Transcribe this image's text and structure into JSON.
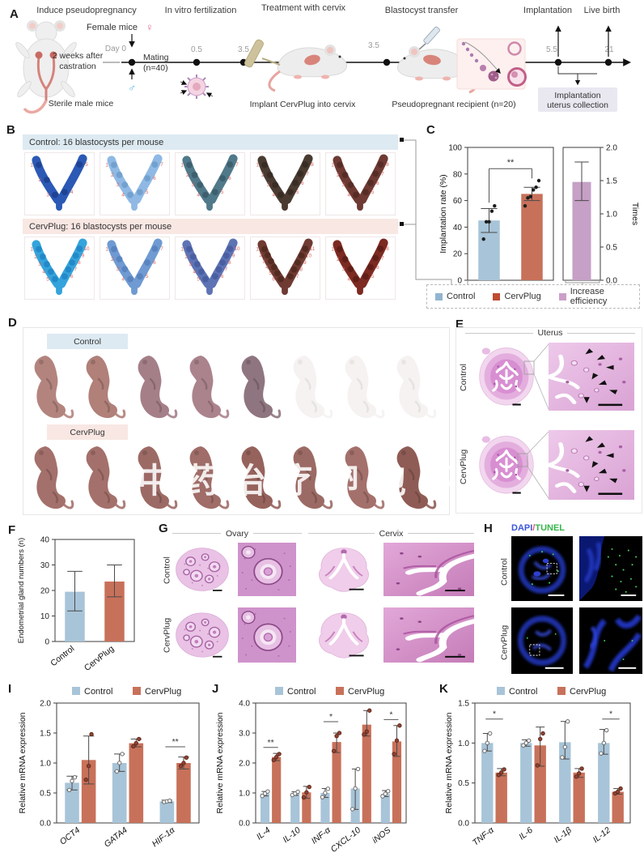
{
  "colors": {
    "control": "#a8c4d8",
    "cervplug": "#c8715a",
    "efficiency": "#c6a0c6",
    "header_blue": "#ddeaf2",
    "header_pink": "#f8e7e3",
    "box_lavender": "#e9e7f0",
    "annot_red": "#d4645f",
    "dapi_blue": "#3b57d8",
    "slash_red": "#e05575",
    "tunel_green": "#35b54a"
  },
  "panelA": {
    "label": "A",
    "titles": {
      "induce": "Induce pseudopregnancy",
      "ivf": "In vitro fertilization",
      "treatment": "Treatment with cervix",
      "transfer": "Blastocyst transfer",
      "implantation": "Implantation",
      "live_birth": "Live birth"
    },
    "female_mice": "Female mice",
    "female_symbol": "♀",
    "male_symbol": "♂",
    "day0": "Day 0",
    "castration_l1": "2 weeks after",
    "castration_l2": "castration",
    "sterile": "Sterile male mice",
    "mating_l1": "Mating",
    "mating_l2": "(n=40)",
    "ticks": {
      "t05": "0.5",
      "t35a": "3.5",
      "t35b": "3.5",
      "t55": "5.5",
      "t21": "21"
    },
    "implant_caption": "Implant CervPlug into cervix",
    "recipient_caption": "Pseudopregnant recipient (n=20)",
    "collection_l1": "Implantation",
    "collection_l2": "uterus collection"
  },
  "panelB": {
    "label": "B",
    "control_header": "Control: 16 blastocysts per mouse",
    "cervplug_header": "CervPlug: 16 blastocysts per mouse",
    "control_uteri": [
      {
        "color": "#2b59b5",
        "dark": "#1c3f8e",
        "sites": 5
      },
      {
        "color": "#8fb9e4",
        "dark": "#6d9ccc",
        "sites": 7
      },
      {
        "color": "#50798a",
        "dark": "#3a5c6a",
        "sites": 7
      },
      {
        "color": "#4a3b31",
        "dark": "#352a22",
        "sites": 8
      },
      {
        "color": "#6e3a33",
        "dark": "#522a26",
        "sites": 8
      }
    ],
    "cervplug_uteri": [
      {
        "color": "#35a3dc",
        "dark": "#1f86c4",
        "sites": 10
      },
      {
        "color": "#6f9ad2",
        "dark": "#5680bc",
        "sites": 7
      },
      {
        "color": "#5d73b4",
        "dark": "#475c9e",
        "sites": 10
      },
      {
        "color": "#6f3b33",
        "dark": "#50291f",
        "sites": 11
      },
      {
        "color": "#7c2a22",
        "dark": "#5c1c16",
        "sites": 8
      }
    ]
  },
  "panelC": {
    "label": "C",
    "legend": [
      {
        "label": "Control",
        "color": "#92b4cf"
      },
      {
        "label": "CervPlug",
        "color": "#bf4b32"
      },
      {
        "label": "Increase efficiency",
        "color": "#cc9fc8"
      }
    ]
  },
  "panelD": {
    "label": "D",
    "control_header": "Control",
    "cervplug_header": "CervPlug",
    "watermark": "中药治疗卵泡不破坏月经",
    "control_pups": [
      {
        "color": "#b3847e"
      },
      {
        "color": "#b08079"
      },
      {
        "color": "#a57f88"
      },
      {
        "color": "#ab838c"
      },
      {
        "color": "#8f7580"
      },
      {
        "color": "#e6dedb",
        "ghost": true
      },
      {
        "color": "#e6dedb",
        "ghost": true
      },
      {
        "color": "#e6dedb",
        "ghost": true
      }
    ],
    "cervplug_pups": [
      {
        "color": "#a4706b"
      },
      {
        "color": "#a4706b"
      },
      {
        "color": "#9c6a64"
      },
      {
        "color": "#a06d68"
      },
      {
        "color": "#96625c"
      },
      {
        "color": "#9c6a64"
      },
      {
        "color": "#a4706b"
      },
      {
        "color": "#8f5c55"
      }
    ]
  },
  "panelE": {
    "label": "E",
    "title": "Uterus",
    "row1": "Control",
    "row2": "CervPlug"
  },
  "panelF": {
    "label": "F"
  },
  "panelG": {
    "label": "G",
    "ovary": "Ovary",
    "cervix": "Cervix",
    "row1": "Control",
    "row2": "CervPlug"
  },
  "panelH": {
    "label": "H",
    "dapi": "DAPI",
    "slash": "/",
    "tunel": "TUNEL",
    "row1": "Control",
    "row2": "CervPlug"
  },
  "panelI": {
    "label": "I"
  },
  "panelJ": {
    "label": "J"
  },
  "panelK": {
    "label": "K"
  },
  "chart_data": [
    {
      "id": "implantation_rate",
      "type": "bar",
      "categories": [
        "Control",
        "CervPlug"
      ],
      "values": [
        45,
        65
      ],
      "errors": [
        [
          36,
          54
        ],
        [
          60,
          70
        ]
      ],
      "points": [
        [
          31,
          44,
          44,
          52,
          56
        ],
        [
          56,
          62,
          63,
          68,
          70,
          75
        ]
      ],
      "bar_colors": [
        "#a8c4d8",
        "#c8715a"
      ],
      "ylabel": "Implantation rate (%)",
      "ylim": [
        0,
        100
      ],
      "yticks": [
        0,
        20,
        40,
        60,
        80,
        100
      ],
      "ytick_labels": [
        "0",
        "20",
        "40",
        "60",
        "80",
        "100"
      ],
      "sig": [
        {
          "cats": [
            0,
            1
          ],
          "label": "**",
          "y": 84,
          "drops": [
            42,
            12
          ]
        }
      ]
    },
    {
      "id": "increase_efficiency",
      "type": "bar",
      "categories": [
        "Increase efficiency"
      ],
      "values": [
        1.48
      ],
      "errors": [
        [
          1.2,
          1.78
        ]
      ],
      "bar_colors": [
        "#c6a0c6"
      ],
      "ylabel": "Times",
      "ylabel_side": "right",
      "ylim": [
        0,
        2
      ],
      "yticks": [
        0,
        0.5,
        1,
        1.5,
        2
      ],
      "ytick_labels": [
        "0.0",
        "0.5",
        "1.0",
        "1.5",
        "2.0"
      ]
    },
    {
      "id": "endometrial_glands",
      "type": "bar",
      "categories": [
        "Control",
        "CervPlug"
      ],
      "values": [
        19.5,
        23.5
      ],
      "errors": [
        [
          12,
          27.5
        ],
        [
          17.5,
          30
        ]
      ],
      "bar_colors": [
        "#a8c4d8",
        "#c8715a"
      ],
      "ylabel": "Endometrial gland numbers (n)",
      "ylim": [
        0,
        40
      ],
      "yticks": [
        0,
        10,
        20,
        30,
        40
      ],
      "ytick_labels": [
        "0",
        "10",
        "20",
        "30",
        "40"
      ],
      "xtick_labels": [
        "Control",
        "CervPlug"
      ]
    },
    {
      "id": "mrna_I",
      "type": "bar",
      "categories": [
        "OCT4",
        "GATA4",
        "HIF-1α"
      ],
      "series": [
        {
          "name": "Control",
          "color": "#a8c4d8",
          "values": [
            0.67,
            1.0,
            0.36
          ],
          "errors": [
            [
              0.55,
              0.78
            ],
            [
              0.86,
              1.15
            ],
            [
              0.34,
              0.38
            ]
          ],
          "points": [
            [
              0.55,
              0.7,
              0.76
            ],
            [
              0.86,
              1.0,
              1.15
            ],
            [
              0.35,
              0.36,
              0.37
            ]
          ]
        },
        {
          "name": "CervPlug",
          "color": "#c8715a",
          "values": [
            1.05,
            1.33,
            1.0
          ],
          "errors": [
            [
              0.65,
              1.45
            ],
            [
              1.27,
              1.4
            ],
            [
              0.9,
              1.1
            ]
          ],
          "points": [
            [
              0.72,
              0.95,
              1.48
            ],
            [
              1.28,
              1.33,
              1.4
            ],
            [
              0.95,
              1.0,
              1.09
            ]
          ]
        }
      ],
      "ylabel": "Relative mRNA expression",
      "ylim": [
        0,
        2
      ],
      "yticks": [
        0,
        0.5,
        1,
        1.5,
        2
      ],
      "ytick_labels": [
        "0.0",
        "0.5",
        "1.0",
        "1.5",
        "2.0"
      ],
      "xtick_labels": [
        "OCT4",
        "GATA4",
        "HIF-1α"
      ],
      "xlabel_italic": true,
      "legend_top": true,
      "sig": [
        {
          "cat": 2,
          "label": "**",
          "y": 1.27
        }
      ]
    },
    {
      "id": "mrna_J",
      "type": "bar",
      "categories": [
        "IL-4",
        "IL-10",
        "INF-α",
        "CXCL-10",
        "iNOS"
      ],
      "series": [
        {
          "name": "Control",
          "color": "#a8c4d8",
          "values": [
            0.98,
            0.98,
            1.0,
            1.15,
            0.97
          ],
          "errors": [
            [
              0.9,
              1.05
            ],
            [
              0.92,
              1.04
            ],
            [
              0.85,
              1.15
            ],
            [
              0.45,
              1.8
            ],
            [
              0.88,
              1.08
            ]
          ],
          "points": [
            [
              0.9,
              0.98,
              1.05
            ],
            [
              0.93,
              0.98,
              1.04
            ],
            [
              0.86,
              1.0,
              1.14
            ],
            [
              0.46,
              1.15,
              1.8
            ],
            [
              0.89,
              0.97,
              1.06
            ]
          ]
        },
        {
          "name": "CervPlug",
          "color": "#c8715a",
          "values": [
            2.2,
            1.02,
            2.7,
            3.28,
            2.72
          ],
          "errors": [
            [
              2.08,
              2.32
            ],
            [
              0.82,
              1.22
            ],
            [
              2.35,
              3.0
            ],
            [
              2.9,
              3.75
            ],
            [
              2.22,
              3.25
            ]
          ],
          "points": [
            [
              2.1,
              2.2,
              2.3
            ],
            [
              0.85,
              1.02,
              1.2
            ],
            [
              2.4,
              2.9,
              3.0
            ],
            [
              2.95,
              3.05,
              3.75
            ],
            [
              2.3,
              2.75,
              3.25
            ]
          ]
        }
      ],
      "ylabel": "Relative mRNA expression",
      "ylim": [
        0,
        4
      ],
      "yticks": [
        0,
        1,
        2,
        3,
        4
      ],
      "ytick_labels": [
        "0.0",
        "1.0",
        "2.0",
        "3.0",
        "4.0"
      ],
      "xtick_labels": [
        "IL-4",
        "IL-10",
        "INF-α",
        "CXCL-10",
        "iNOS"
      ],
      "xlabel_italic": true,
      "legend_top": true,
      "sig": [
        {
          "cat": 0,
          "label": "**",
          "y": 2.52
        },
        {
          "cat": 2,
          "label": "*",
          "y": 3.38
        },
        {
          "cat": 4,
          "label": "*",
          "y": 3.45
        }
      ]
    },
    {
      "id": "mrna_K",
      "type": "bar",
      "categories": [
        "TNF-α",
        "IL-6",
        "IL-1β",
        "IL-12"
      ],
      "series": [
        {
          "name": "Control",
          "color": "#a8c4d8",
          "values": [
            1.0,
            1.0,
            1.01,
            1.0
          ],
          "errors": [
            [
              0.9,
              1.12
            ],
            [
              0.96,
              1.04
            ],
            [
              0.8,
              1.27
            ],
            [
              0.86,
              1.17
            ]
          ],
          "points": [
            [
              0.9,
              1.0,
              1.12
            ],
            [
              0.97,
              1.0,
              1.03
            ],
            [
              0.82,
              0.95,
              1.27
            ],
            [
              0.87,
              1.0,
              1.16
            ]
          ]
        },
        {
          "name": "CervPlug",
          "color": "#c8715a",
          "values": [
            0.63,
            0.97,
            0.63,
            0.39
          ],
          "errors": [
            [
              0.59,
              0.68
            ],
            [
              0.71,
              1.2
            ],
            [
              0.57,
              0.68
            ],
            [
              0.36,
              0.43
            ]
          ],
          "points": [
            [
              0.6,
              0.63,
              0.67
            ],
            [
              0.72,
              1.05,
              1.12
            ],
            [
              0.58,
              0.62,
              0.68
            ],
            [
              0.37,
              0.39,
              0.43
            ]
          ]
        }
      ],
      "ylabel": "Relative mRNA expression",
      "ylim": [
        0,
        1.5
      ],
      "yticks": [
        0,
        0.5,
        1,
        1.5
      ],
      "ytick_labels": [
        "0.0",
        "0.5",
        "1.0",
        "1.5"
      ],
      "xtick_labels": [
        "TNF-α",
        "IL-6",
        "IL-1β",
        "IL-12"
      ],
      "xlabel_italic": true,
      "legend_top": true,
      "sig": [
        {
          "cat": 0,
          "label": "*",
          "y": 1.3
        },
        {
          "cat": 3,
          "label": "*",
          "y": 1.3
        }
      ]
    }
  ]
}
